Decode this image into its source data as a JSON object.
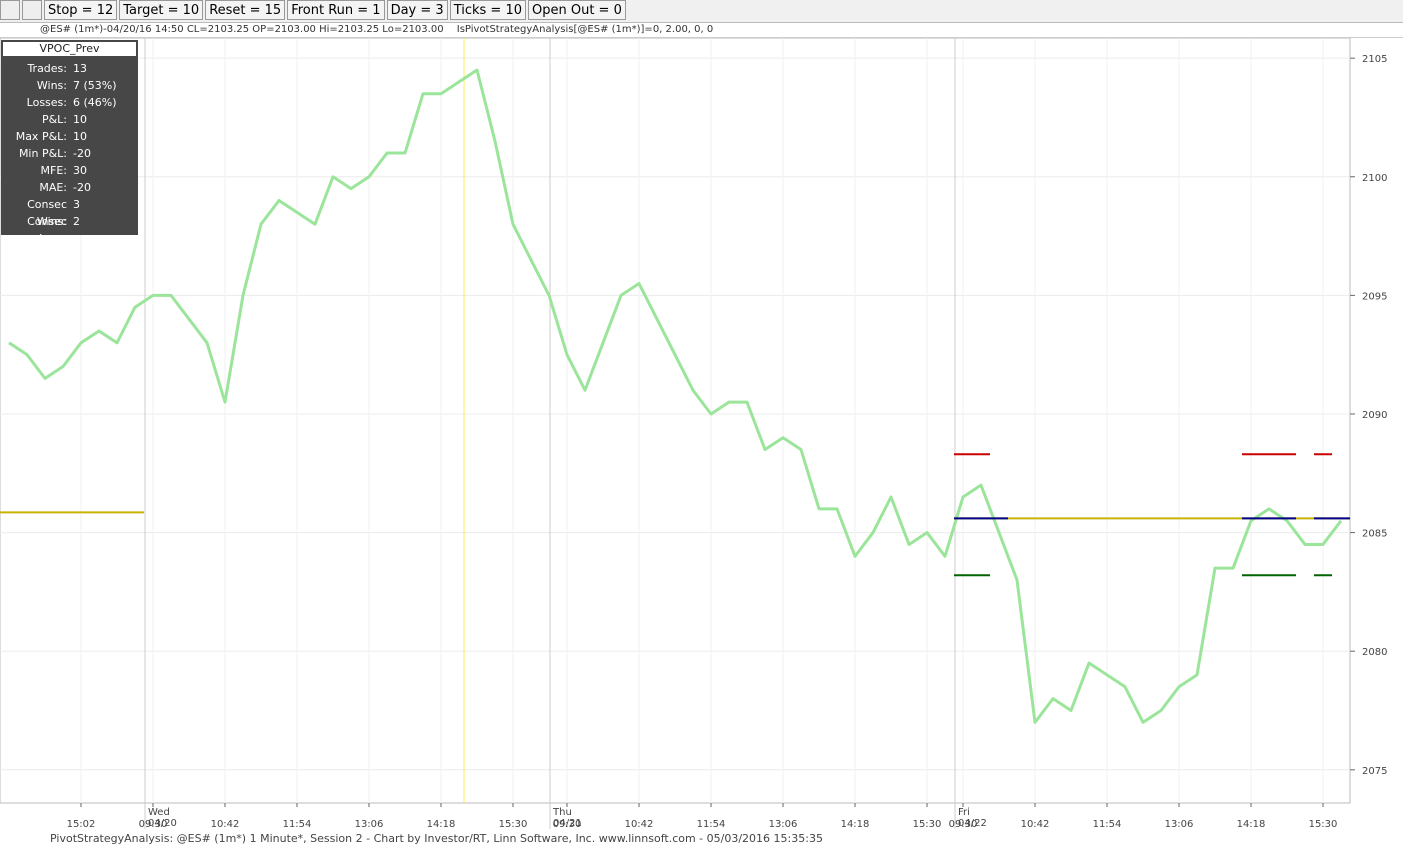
{
  "toolbar": {
    "buttons": [
      "Stop = 12",
      "Target = 10",
      "Reset = 15",
      "Front Run = 1",
      "Day = 3",
      "Ticks = 10",
      "Open Out = 0"
    ]
  },
  "info_bar": {
    "symbol_info": "@ES# (1m*)-04/20/16 14:50 CL=2103.25 OP=2103.00 Hi=2103.25 Lo=2103.00",
    "indicator": "IsPivotStrategyAnalysis[@ES# (1m*)]=0, 2.00, 0, 0"
  },
  "stats": {
    "title": "VPOC_Prev",
    "rows": [
      [
        "Trades:",
        "13"
      ],
      [
        "Wins:",
        "7 (53%)"
      ],
      [
        "Losses:",
        "6 (46%)"
      ],
      [
        "P&L:",
        "10"
      ],
      [
        "Max P&L:",
        "10"
      ],
      [
        "Min P&L:",
        "-20"
      ],
      [
        "MFE:",
        "30"
      ],
      [
        "MAE:",
        "-20"
      ],
      [
        "Consec Wins:",
        "3"
      ],
      [
        "Consec Loss:",
        "2"
      ]
    ]
  },
  "chart_data": {
    "type": "line",
    "categories": [
      null,
      null,
      null,
      null,
      "15:02",
      null,
      null,
      null,
      "09:30",
      null,
      null,
      null,
      "10:42",
      null,
      null,
      null,
      "11:54",
      null,
      null,
      null,
      "13:06",
      null,
      null,
      null,
      "14:18",
      null,
      null,
      null,
      "15:30",
      null,
      null,
      "09:30",
      null,
      null,
      null,
      "10:42",
      null,
      null,
      null,
      "11:54",
      null,
      null,
      null,
      "13:06",
      null,
      null,
      null,
      "14:18",
      null,
      null,
      null,
      "15:30",
      null,
      "09:30",
      null,
      null,
      null,
      "10:42",
      null,
      null,
      null,
      "11:54",
      null,
      null,
      null,
      "13:06",
      null,
      null,
      null,
      "14:18",
      null,
      null,
      null,
      "15:30",
      null
    ],
    "series": [
      {
        "color": "#9be59b",
        "values": [
          2093,
          2092.5,
          2091.5,
          2092,
          2093,
          2093.5,
          2093,
          2094.5,
          2095,
          2095,
          2094,
          2093,
          2090.5,
          2095,
          2098,
          2099,
          2098.5,
          2098,
          2100,
          2099.5,
          2100,
          2101,
          2101,
          2103.5,
          2103.5,
          2104,
          2104.5,
          2101.5,
          2098,
          2096.5,
          2095,
          2092.5,
          2091,
          2093,
          2095,
          2095.5,
          2094,
          2092.5,
          2091,
          2090,
          2090.5,
          2090.5,
          2088.5,
          2089,
          2088.5,
          2086,
          2086,
          2084,
          2085,
          2086.5,
          2084.5,
          2085,
          2084,
          2086.5,
          2087,
          2085,
          2083,
          2077,
          2078,
          2077.5,
          2079.5,
          2079,
          2078.5,
          2077,
          2077.5,
          2078.5,
          2079,
          2083.5,
          2083.5,
          2085.5,
          2086,
          2085.5,
          2084.5,
          2084.5,
          2085.5
        ]
      }
    ],
    "levels": [
      {
        "color": "#c8b400",
        "value": 2085.85,
        "from": 0,
        "to": 7
      },
      {
        "color": "#c8b400",
        "value": 2085.6,
        "from": 53,
        "to": 74
      },
      {
        "color": "#cc0000",
        "value": 2088.3,
        "from": 53,
        "to": 54
      },
      {
        "color": "#cc0000",
        "value": 2088.3,
        "from": 69,
        "to": 71
      },
      {
        "color": "#cc0000",
        "value": 2088.3,
        "from": 73,
        "to": 73
      },
      {
        "color": "#00008b",
        "value": 2085.6,
        "from": 53,
        "to": 55
      },
      {
        "color": "#00008b",
        "value": 2085.6,
        "from": 69,
        "to": 71
      },
      {
        "color": "#00008b",
        "value": 2085.6,
        "from": 73,
        "to": 74
      },
      {
        "color": "#006400",
        "value": 2083.2,
        "from": 53,
        "to": 54
      },
      {
        "color": "#006400",
        "value": 2083.2,
        "from": 69,
        "to": 71
      },
      {
        "color": "#006400",
        "value": 2083.2,
        "from": 73,
        "to": 73
      }
    ],
    "days": [
      {
        "day": "Wed",
        "date": "04/20"
      },
      {
        "day": "Thu",
        "date": "04/21"
      },
      {
        "day": "Fri",
        "date": "04/22"
      }
    ],
    "ylim": [
      2073.6,
      2105.85
    ],
    "yticks": [
      2075,
      2080,
      2085,
      2090,
      2095,
      2100,
      2105
    ],
    "grid": true
  },
  "footer": "PivotStrategyAnalysis: @ES# (1m*) 1 Minute*, Session 2 - Chart by Investor/RT, Linn Software, Inc. www.linnsoft.com - 05/03/2016 15:35:35"
}
